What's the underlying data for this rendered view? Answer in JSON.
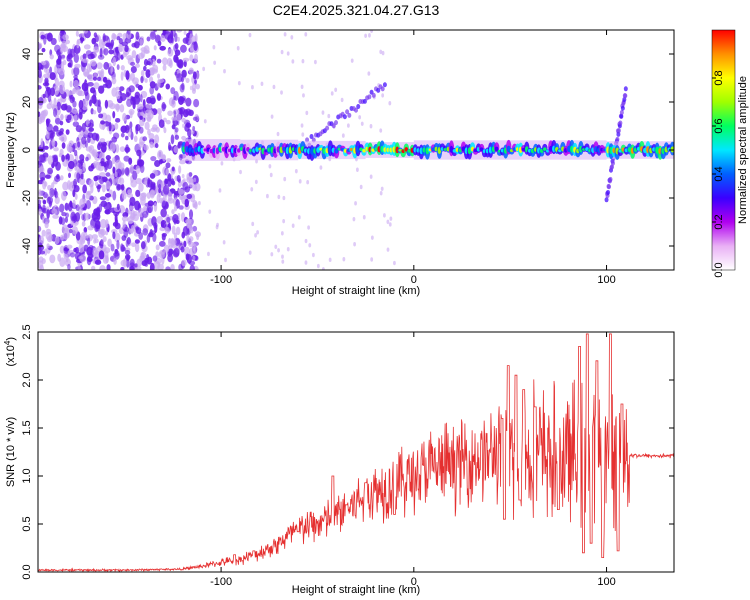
{
  "title": "C2E4.2025.321.04.27.G13",
  "colors": {
    "snr_line": "#e53030",
    "spectrum_points": "#6a1ee8",
    "faint_points": "#c9a8f2",
    "axis": "#000000"
  },
  "chart_data": [
    {
      "type": "heatmap",
      "name": "spectrogram",
      "xlabel": "Height of straight line (km)",
      "ylabel": "Frequency (Hz)",
      "xlim": [
        -195,
        135
      ],
      "ylim": [
        -50,
        50
      ],
      "x_ticks": [
        -100,
        0,
        100
      ],
      "y_ticks": [
        -40,
        -20,
        0,
        20,
        40
      ],
      "x_tick_labels": [
        "-100",
        "0",
        "100"
      ],
      "y_tick_labels": [
        "-40",
        "-20",
        "0",
        "20",
        "40"
      ],
      "noise_region_x": [
        -195,
        -120
      ],
      "ridge": {
        "freq_hz": 0,
        "x_start": -120,
        "x_end": 135,
        "segments": [
          {
            "x": [
              -120,
              -90
            ],
            "amplitude": 0.35
          },
          {
            "x": [
              -90,
              -60
            ],
            "amplitude": 0.45
          },
          {
            "x": [
              -60,
              -25
            ],
            "amplitude": 0.65
          },
          {
            "x": [
              -25,
              0
            ],
            "amplitude": 0.85
          },
          {
            "x": [
              0,
              100
            ],
            "amplitude": 0.55
          },
          {
            "x": [
              100,
              135
            ],
            "amplitude": 0.7
          }
        ]
      },
      "features": [
        {
          "type": "branch",
          "x": [
            -60,
            -15
          ],
          "freq": [
            0,
            27
          ]
        },
        {
          "type": "branch",
          "x": [
            100,
            110
          ],
          "freq": [
            -20,
            25
          ]
        }
      ],
      "colorbar": {
        "label": "Normalized spectral amplitude",
        "range": [
          0,
          1
        ],
        "ticks": [
          0.0,
          0.2,
          0.4,
          0.6,
          0.8
        ],
        "tick_labels": [
          "0.0",
          "0.2",
          "0.4",
          "0.6",
          "0.8"
        ],
        "stops": [
          "#ffffff",
          "#e9b0f5",
          "#b000f0",
          "#3a00ff",
          "#0060ff",
          "#00e8ff",
          "#00ff60",
          "#a0ff00",
          "#ffff00",
          "#ff9000",
          "#ff0000"
        ]
      }
    },
    {
      "type": "line",
      "name": "snr",
      "xlabel": "Height of straight line (km)",
      "ylabel": "SNR (10 * v/v)",
      "y_multiplier": "(x10",
      "y_multiplier_exp": "4",
      "y_multiplier_close": ")",
      "xlim": [
        -195,
        135
      ],
      "ylim": [
        0,
        2.5
      ],
      "x_ticks": [
        -100,
        0,
        100
      ],
      "y_ticks": [
        0.0,
        0.5,
        1.0,
        1.5,
        2.0,
        2.5
      ],
      "x_tick_labels": [
        "-100",
        "0",
        "100"
      ],
      "y_tick_labels": [
        "0.0",
        "0.5",
        "1.0",
        "1.5",
        "2.0",
        "2.5"
      ],
      "envelope": {
        "x": [
          -195,
          -150,
          -120,
          -110,
          -100,
          -90,
          -80,
          -70,
          -60,
          -50,
          -40,
          -30,
          -20,
          -10,
          0,
          10,
          20,
          30,
          40,
          45,
          50,
          60,
          70,
          80,
          90,
          100,
          110,
          120,
          135
        ],
        "y": [
          0.02,
          0.02,
          0.03,
          0.06,
          0.1,
          0.13,
          0.2,
          0.3,
          0.45,
          0.5,
          0.6,
          0.72,
          0.85,
          0.92,
          1.0,
          1.08,
          1.12,
          1.18,
          1.22,
          1.25,
          1.25,
          1.22,
          1.2,
          1.2,
          1.2,
          1.2,
          1.22,
          1.21,
          1.21
        ]
      },
      "spikes": [
        {
          "x": -93,
          "y": 0.18
        },
        {
          "x": -83,
          "y": 0.22
        },
        {
          "x": -60,
          "y": 0.42
        },
        {
          "x": -42,
          "y": 1.0
        },
        {
          "x": -35,
          "y": 0.7
        },
        {
          "x": -25,
          "y": 0.93
        },
        {
          "x": -10,
          "y": 0.6
        },
        {
          "x": 46,
          "y": 1.6
        },
        {
          "x": 49,
          "y": 2.15
        },
        {
          "x": 53,
          "y": 2.05
        },
        {
          "x": 57,
          "y": 1.9
        },
        {
          "x": 63,
          "y": 1.72
        },
        {
          "x": 75,
          "y": 1.72
        },
        {
          "x": 86,
          "y": 2.35
        },
        {
          "x": 90,
          "y": 2.48
        },
        {
          "x": 95,
          "y": 2.2
        },
        {
          "x": 102,
          "y": 2.48
        },
        {
          "x": 108,
          "y": 1.75
        }
      ],
      "dips": [
        {
          "x": 47,
          "y": 0.55
        },
        {
          "x": 55,
          "y": 0.75
        },
        {
          "x": 75,
          "y": 0.65
        },
        {
          "x": 88,
          "y": 0.2
        },
        {
          "x": 92,
          "y": 0.3
        },
        {
          "x": 98,
          "y": 0.15
        },
        {
          "x": 106,
          "y": 0.22
        }
      ]
    }
  ]
}
